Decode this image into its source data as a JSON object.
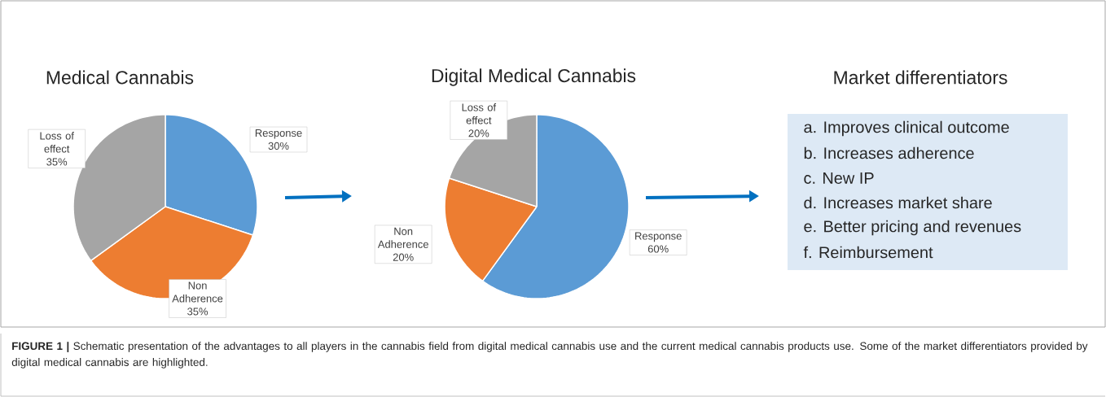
{
  "chart_data": [
    {
      "type": "pie",
      "title": "Medical Cannabis",
      "categories": [
        "Response",
        "Non Adherence",
        "Loss of effect"
      ],
      "values": [
        30,
        35,
        35
      ],
      "colors": [
        "#5b9bd5",
        "#ed7d31",
        "#a5a5a5"
      ],
      "value_labels": [
        "30%",
        "35%",
        "35%"
      ],
      "annotations": [
        "**FIGURE 1 |** Schematic presentation of the advantages to all players in the cannabis field from digital medical cannabis use and the current medical cannabis products use. Some of the market differentiators provided by digital medical cannabis are highlighted."
      ]
    },
    {
      "type": "pie",
      "title": "Digital Medical Cannabis",
      "categories": [
        "Response",
        "Non Adherence",
        "Loss of effect"
      ],
      "values": [
        60,
        20,
        20
      ],
      "colors": [
        "#5b9bd5",
        "#ed7d31",
        "#a5a5a5"
      ],
      "value_labels": [
        "60%",
        "20%",
        "20%"
      ]
    },
    {
      "type": "other",
      "title": "Market differentiators",
      "annotations": [
        "a.  Improves clinical outcome",
        "b.  Increases adherence",
        "c.  New IP",
        "d.  Increases market share",
        "e.  Better pricing and revenues",
        "f.  Reimbursement"
      ]
    }
  ]
}
